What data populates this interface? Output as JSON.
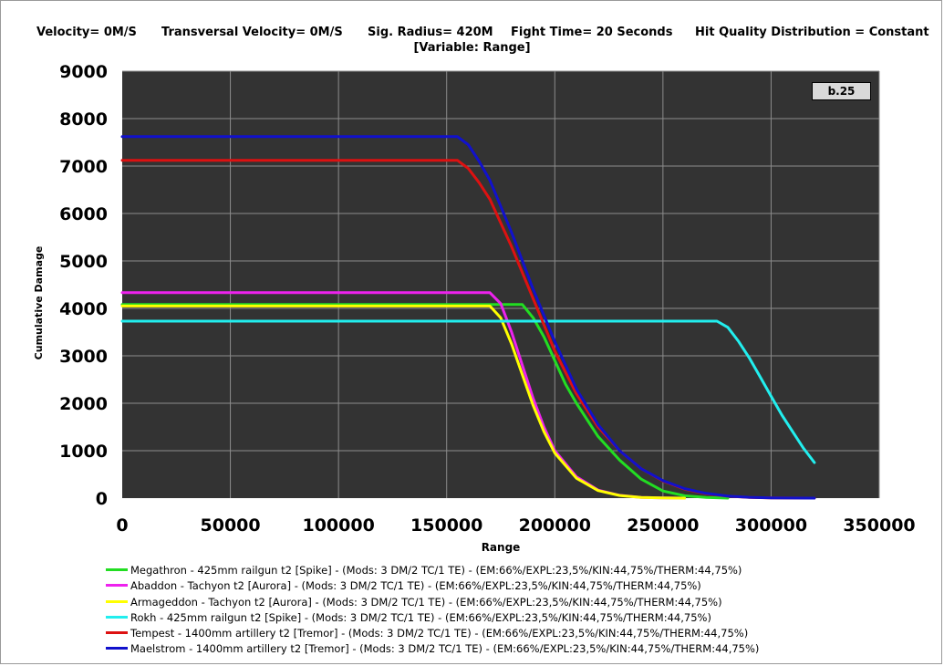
{
  "header": {
    "params": [
      {
        "text": "Velocity= 0M/S"
      },
      {
        "text": "Transversal Velocity= 0M/S"
      },
      {
        "text": "Sig. Radius= 420M"
      },
      {
        "text": "Fight Time= 20 Seconds"
      },
      {
        "text": "Hit Quality Distribution = Constant"
      }
    ],
    "variable": "[Variable: Range]"
  },
  "badge": "b.25",
  "chart_data": {
    "type": "line",
    "title": "",
    "xlabel": "Range",
    "ylabel": "Cumulative Damage",
    "xlim": [
      0,
      350000
    ],
    "ylim": [
      0,
      9000
    ],
    "x_ticks": [
      0,
      50000,
      100000,
      150000,
      200000,
      250000,
      300000,
      350000
    ],
    "y_ticks": [
      0,
      1000,
      2000,
      3000,
      4000,
      5000,
      6000,
      7000,
      8000,
      9000
    ],
    "grid": true,
    "legend_position": "bottom",
    "plot_background": "#333333",
    "series": [
      {
        "name": "Megathron - 425mm railgun t2 [Spike] - (Mods: 3 DM/2 TC/1 TE) - (EM:66%/EXPL:23,5%/KIN:44,75%/THERM:44,75%)",
        "color": "#22dd22",
        "x": [
          0,
          170000,
          185000,
          190000,
          195000,
          200000,
          205000,
          210000,
          220000,
          230000,
          240000,
          250000,
          260000,
          270000,
          280000
        ],
        "y": [
          4080,
          4080,
          4080,
          3800,
          3400,
          2900,
          2400,
          2000,
          1300,
          800,
          400,
          150,
          50,
          15,
          0
        ]
      },
      {
        "name": "Abaddon - Tachyon t2 [Aurora] - (Mods: 3 DM/2 TC/1 TE) - (EM:66%/EXPL:23,5%/KIN:44,75%/THERM:44,75%)",
        "color": "#ee22ee",
        "x": [
          0,
          170000,
          175000,
          180000,
          185000,
          190000,
          195000,
          200000,
          210000,
          220000,
          230000,
          240000,
          250000,
          260000
        ],
        "y": [
          4330,
          4330,
          4100,
          3500,
          2800,
          2100,
          1500,
          1000,
          450,
          170,
          60,
          15,
          5,
          0
        ]
      },
      {
        "name": "Armageddon - Tachyon t2 [Aurora] - (Mods: 3 DM/2 TC/1 TE) - (EM:66%/EXPL:23,5%/KIN:44,75%/THERM:44,75%)",
        "color": "#ffff00",
        "x": [
          0,
          170000,
          175000,
          180000,
          185000,
          190000,
          195000,
          200000,
          210000,
          220000,
          230000,
          240000,
          250000,
          260000
        ],
        "y": [
          4050,
          4050,
          3800,
          3250,
          2600,
          1950,
          1400,
          950,
          420,
          160,
          55,
          15,
          5,
          0
        ]
      },
      {
        "name": "Rokh - 425mm railgun t2 [Spike] - (Mods: 3 DM/2 TC/1 TE) - (EM:66%/EXPL:23,5%/KIN:44,75%/THERM:44,75%)",
        "color": "#22eeee",
        "x": [
          0,
          275000,
          280000,
          285000,
          290000,
          295000,
          300000,
          305000,
          310000,
          315000,
          320000
        ],
        "y": [
          3730,
          3730,
          3600,
          3300,
          2950,
          2550,
          2150,
          1750,
          1400,
          1050,
          750
        ]
      },
      {
        "name": "Tempest - 1400mm artillery t2 [Tremor] - (Mods: 3 DM/2 TC/1 TE) - (EM:66%/EXPL:23,5%/KIN:44,75%/THERM:44,75%)",
        "color": "#dd1111",
        "x": [
          0,
          155000,
          160000,
          165000,
          170000,
          180000,
          190000,
          200000,
          210000,
          220000,
          230000,
          240000,
          250000,
          260000,
          270000,
          280000,
          290000,
          300000,
          320000
        ],
        "y": [
          7120,
          7120,
          6950,
          6650,
          6300,
          5300,
          4200,
          3100,
          2200,
          1500,
          1000,
          620,
          360,
          190,
          90,
          40,
          15,
          5,
          0
        ]
      },
      {
        "name": "Maelstrom - 1400mm artillery t2 [Tremor] - (Mods: 3 DM/2 TC/1 TE) - (EM:66%/EXPL:23,5%/KIN:44,75%/THERM:44,75%)",
        "color": "#1111cc",
        "x": [
          0,
          155000,
          160000,
          165000,
          170000,
          180000,
          190000,
          200000,
          210000,
          220000,
          230000,
          240000,
          250000,
          260000,
          270000,
          280000,
          290000,
          300000,
          320000
        ],
        "y": [
          7620,
          7620,
          7450,
          7100,
          6700,
          5600,
          4400,
          3300,
          2300,
          1550,
          1000,
          620,
          370,
          200,
          100,
          45,
          18,
          6,
          0
        ]
      }
    ]
  }
}
